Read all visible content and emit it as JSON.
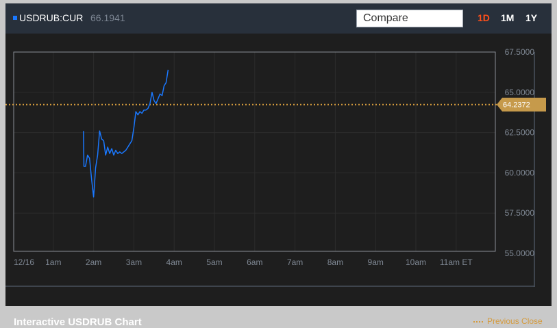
{
  "header": {
    "ticker": "USDRUB:CUR",
    "price": "66.1941",
    "compare_label": "Compare",
    "ranges": [
      "1D",
      "1M",
      "1Y"
    ],
    "active_range": "1D"
  },
  "footer": {
    "title": "Interactive USDRUB Chart",
    "legend_label": "Previous Close"
  },
  "colors": {
    "series": "#1a78ff",
    "previous_close": "#d59b3d",
    "active_range": "#ff4f1a"
  },
  "chart_data": {
    "type": "line",
    "x_tick_labels": [
      "12/16",
      "1am",
      "2am",
      "3am",
      "4am",
      "5am",
      "6am",
      "7am",
      "8am",
      "9am",
      "10am",
      "11am ET"
    ],
    "y_tick_labels": [
      "67.5000",
      "65.0000",
      "62.5000",
      "60.0000",
      "57.5000",
      "55.0000"
    ],
    "ylim": [
      55.0,
      67.5
    ],
    "xlim": [
      0,
      12
    ],
    "grid": true,
    "previous_close": 64.2372,
    "previous_close_label": "64.2372",
    "series": [
      {
        "x": [
          1.75,
          1.76,
          1.8,
          1.85,
          1.9,
          1.95,
          2.0,
          2.02,
          2.05,
          2.1,
          2.15,
          2.2,
          2.25,
          2.3,
          2.35,
          2.4,
          2.45,
          2.5,
          2.55,
          2.6,
          2.65,
          2.7,
          2.75,
          2.8,
          2.85,
          2.9,
          2.95,
          3.0,
          3.05,
          3.1,
          3.15,
          3.2,
          3.25,
          3.3,
          3.35,
          3.4,
          3.45,
          3.5,
          3.55,
          3.6,
          3.65,
          3.7,
          3.75,
          3.8,
          3.85
        ],
        "y": [
          62.6,
          60.4,
          60.4,
          61.1,
          60.9,
          59.6,
          58.5,
          59.2,
          60.3,
          61.1,
          62.6,
          62.1,
          62.0,
          61.1,
          61.6,
          61.2,
          61.5,
          61.1,
          61.4,
          61.2,
          61.3,
          61.2,
          61.3,
          61.4,
          61.6,
          61.8,
          62.0,
          62.8,
          63.8,
          63.6,
          63.8,
          63.7,
          63.9,
          63.9,
          64.0,
          64.3,
          65.0,
          64.5,
          64.3,
          64.6,
          64.9,
          64.8,
          65.4,
          65.6,
          66.4
        ]
      }
    ]
  }
}
